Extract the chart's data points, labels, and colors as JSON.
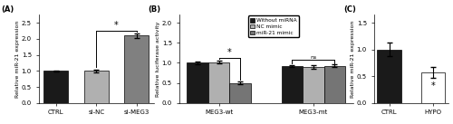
{
  "panel_A": {
    "categories": [
      "CTRL",
      "si-NC",
      "si-MEG3"
    ],
    "values": [
      1.0,
      1.0,
      2.1
    ],
    "errors": [
      0.02,
      0.05,
      0.07
    ],
    "colors": [
      "#1a1a1a",
      "#b0b0b0",
      "#808080"
    ],
    "ylabel": "Relative miR-21 expression",
    "ylim": [
      0,
      2.75
    ],
    "yticks": [
      0.0,
      0.5,
      1.0,
      1.5,
      2.0,
      2.5
    ],
    "label": "(A)"
  },
  "panel_B": {
    "groups": [
      "MEG3-wt",
      "MEG3-mt"
    ],
    "series": [
      "Without miRNA",
      "NC mimic",
      "miR-21 mimic"
    ],
    "values": [
      [
        1.0,
        1.02,
        0.5
      ],
      [
        0.92,
        0.9,
        0.93
      ]
    ],
    "errors": [
      [
        0.03,
        0.04,
        0.04
      ],
      [
        0.03,
        0.04,
        0.03
      ]
    ],
    "colors": [
      "#1a1a1a",
      "#b0b0b0",
      "#757575"
    ],
    "ylabel": "Relative luciferase activity",
    "ylim": [
      0,
      2.2
    ],
    "yticks": [
      0.0,
      0.5,
      1.0,
      1.5,
      2.0
    ],
    "label": "(B)"
  },
  "panel_C": {
    "categories": [
      "CTRL",
      "HYPO"
    ],
    "values": [
      1.0,
      0.57
    ],
    "errors": [
      0.13,
      0.1
    ],
    "colors": [
      "#1a1a1a",
      "#ffffff"
    ],
    "ylabel": "Relative miR-21 expression",
    "ylim": [
      0,
      1.65
    ],
    "yticks": [
      0.0,
      0.5,
      1.0,
      1.5
    ],
    "label": "(C)"
  }
}
